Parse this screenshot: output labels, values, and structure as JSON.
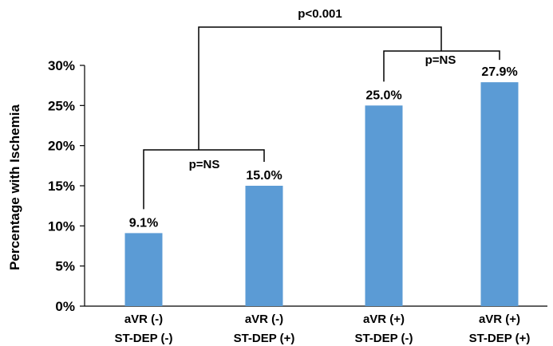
{
  "chart_data": {
    "type": "bar",
    "ylabel": "Percentage with Ischemia",
    "xlabel": "",
    "ylim": [
      0,
      30
    ],
    "yticks": [
      "0%",
      "5%",
      "10%",
      "15%",
      "20%",
      "25%",
      "30%"
    ],
    "grid": false,
    "categories": [
      [
        "aVR (-)",
        "ST-DEP (-)"
      ],
      [
        "aVR (-)",
        "ST-DEP (+)"
      ],
      [
        "aVR (+)",
        "ST-DEP (-)"
      ],
      [
        "aVR (+)",
        "ST-DEP (+)"
      ]
    ],
    "values": [
      9.1,
      15.0,
      25.0,
      27.9
    ],
    "data_labels": [
      "9.1%",
      "15.0%",
      "25.0%",
      "27.9%"
    ],
    "bar_color": "#5b9bd5",
    "annotations": [
      {
        "text": "p=NS",
        "between": [
          0,
          1
        ]
      },
      {
        "text": "p=NS",
        "between": [
          2,
          3
        ]
      },
      {
        "text": "p<0.001",
        "between": [
          "pair-1",
          "pair-2"
        ]
      }
    ]
  }
}
